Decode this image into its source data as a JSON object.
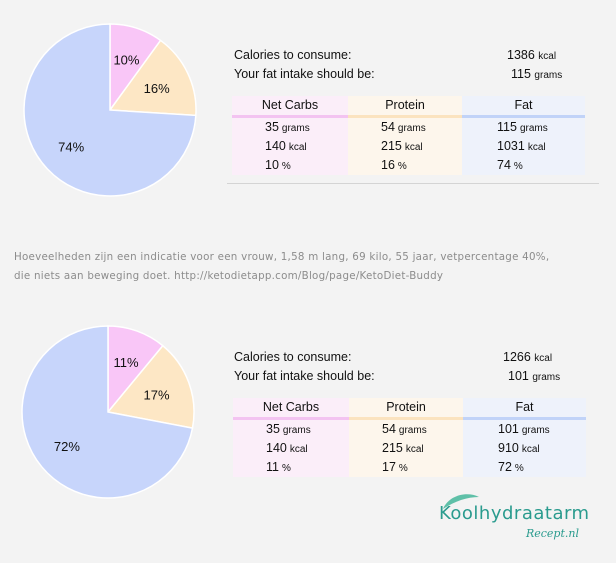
{
  "chart_data": [
    {
      "type": "pie",
      "slices": [
        {
          "label": "10%",
          "value": 10,
          "color": "#f9c6f7"
        },
        {
          "label": "16%",
          "value": 16,
          "color": "#fde7c5"
        },
        {
          "label": "74%",
          "value": 74,
          "color": "#c7d5fb"
        }
      ]
    },
    {
      "type": "pie",
      "slices": [
        {
          "label": "11%",
          "value": 11,
          "color": "#f9c6f7"
        },
        {
          "label": "17%",
          "value": 17,
          "color": "#fde7c5"
        },
        {
          "label": "72%",
          "value": 72,
          "color": "#c7d5fb"
        }
      ]
    }
  ],
  "panels": [
    {
      "calories_label": "Calories to consume:",
      "calories_value": "1386",
      "calories_unit": "kcal",
      "fat_label": "Your fat intake should be:",
      "fat_value": "115",
      "fat_unit": "grams",
      "columns": [
        {
          "header": "Net Carbs",
          "cells": [
            {
              "v": "35",
              "u": "grams"
            },
            {
              "v": "140",
              "u": "kcal"
            },
            {
              "v": "10",
              "u": "%"
            }
          ]
        },
        {
          "header": "Protein",
          "cells": [
            {
              "v": "54",
              "u": "grams"
            },
            {
              "v": "215",
              "u": "kcal"
            },
            {
              "v": "16",
              "u": "%"
            }
          ]
        },
        {
          "header": "Fat",
          "cells": [
            {
              "v": "115",
              "u": "grams"
            },
            {
              "v": "1031",
              "u": "kcal"
            },
            {
              "v": "74",
              "u": "%"
            }
          ]
        }
      ]
    },
    {
      "calories_label": "Calories to consume:",
      "calories_value": "1266",
      "calories_unit": "kcal",
      "fat_label": "Your fat intake should be:",
      "fat_value": "101",
      "fat_unit": "grams",
      "columns": [
        {
          "header": "Net Carbs",
          "cells": [
            {
              "v": "35",
              "u": "grams"
            },
            {
              "v": "140",
              "u": "kcal"
            },
            {
              "v": "11",
              "u": "%"
            }
          ]
        },
        {
          "header": "Protein",
          "cells": [
            {
              "v": "54",
              "u": "grams"
            },
            {
              "v": "215",
              "u": "kcal"
            },
            {
              "v": "17",
              "u": "%"
            }
          ]
        },
        {
          "header": "Fat",
          "cells": [
            {
              "v": "101",
              "u": "grams"
            },
            {
              "v": "910",
              "u": "kcal"
            },
            {
              "v": "72",
              "u": "%"
            }
          ]
        }
      ]
    }
  ],
  "note": {
    "line1": "Hoeveelheden zijn een indicatie voor een vrouw, 1,58 m lang, 69 kilo,  55 jaar, vetpercentage 40%,",
    "line2": "die niets aan beweging doet.   http://ketodietapp.com/Blog/page/KetoDiet-Buddy"
  },
  "logo": {
    "word": "Koolhydraatarm",
    "sub": "Recept.nl",
    "color": "#2a9b8e"
  }
}
